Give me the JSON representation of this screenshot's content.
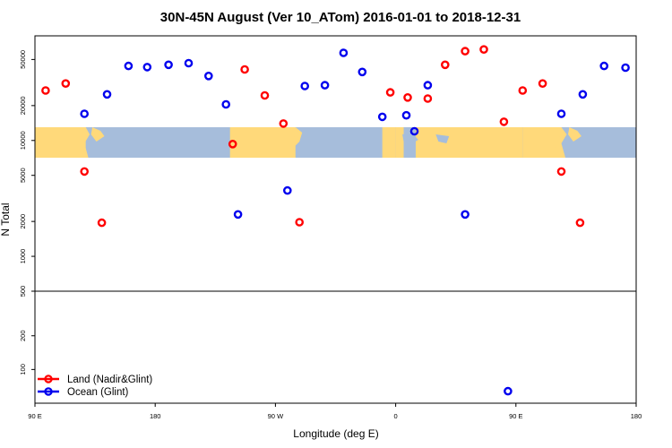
{
  "chart_data": {
    "type": "scatter",
    "title": "30N-45N August (Ver 10_ATom)   2016-01-01 to 2018-12-31",
    "xlabel": "Longitude (deg E)",
    "ylabel": "N Total",
    "x_ticks": [
      {
        "value": 90,
        "label": "90 E"
      },
      {
        "value": 180,
        "label": "180"
      },
      {
        "value": 270,
        "label": "90 W"
      },
      {
        "value": 360,
        "label": "0"
      },
      {
        "value": 450,
        "label": "90 E"
      },
      {
        "value": 540,
        "label": "180"
      }
    ],
    "xlim": [
      90,
      540
    ],
    "y_scale": "log",
    "upper_panel": {
      "ylim": [
        500,
        80000
      ],
      "y_ticks": [
        {
          "value": 500,
          "label": "500"
        },
        {
          "value": 1000,
          "label": "1000"
        },
        {
          "value": 2000,
          "label": "2000"
        },
        {
          "value": 5000,
          "label": "5000"
        },
        {
          "value": 10000,
          "label": "10000"
        },
        {
          "value": 20000,
          "label": "20000"
        },
        {
          "value": 50000,
          "label": "50000"
        }
      ]
    },
    "lower_panel": {
      "ylim": [
        50,
        500
      ],
      "y_ticks": [
        {
          "value": 100,
          "label": "100"
        },
        {
          "value": 200,
          "label": "200"
        },
        {
          "value": 500,
          "label": "500"
        }
      ]
    },
    "map_band": {
      "lat_range": "30N-45N",
      "land_color": "#FFD97A",
      "ocean_color": "#A6BDDB"
    },
    "legend_position": "bottom-left",
    "series": [
      {
        "name": "Land (Nadir&Glint)",
        "color": "#FF0000",
        "points": [
          {
            "x": 98,
            "y": 27000
          },
          {
            "x": 113,
            "y": 31000
          },
          {
            "x": 127,
            "y": 5400
          },
          {
            "x": 140,
            "y": 1950
          },
          {
            "x": 238,
            "y": 9300
          },
          {
            "x": 247,
            "y": 41000
          },
          {
            "x": 262,
            "y": 24500
          },
          {
            "x": 276,
            "y": 14000
          },
          {
            "x": 288,
            "y": 1970
          },
          {
            "x": 356,
            "y": 26000
          },
          {
            "x": 369,
            "y": 23500
          },
          {
            "x": 384,
            "y": 23000
          },
          {
            "x": 397,
            "y": 45000
          },
          {
            "x": 412,
            "y": 59000
          },
          {
            "x": 426,
            "y": 61000
          },
          {
            "x": 441,
            "y": 14500
          },
          {
            "x": 455,
            "y": 27000
          },
          {
            "x": 470,
            "y": 31000
          },
          {
            "x": 484,
            "y": 5400
          },
          {
            "x": 498,
            "y": 1950
          }
        ]
      },
      {
        "name": "Ocean (Glint)",
        "color": "#0000EE",
        "points": [
          {
            "x": 127,
            "y": 17000
          },
          {
            "x": 144,
            "y": 25000
          },
          {
            "x": 160,
            "y": 44000
          },
          {
            "x": 174,
            "y": 43000
          },
          {
            "x": 190,
            "y": 45000
          },
          {
            "x": 205,
            "y": 46500
          },
          {
            "x": 220,
            "y": 36000
          },
          {
            "x": 233,
            "y": 20500
          },
          {
            "x": 242,
            "y": 2300
          },
          {
            "x": 279,
            "y": 3700
          },
          {
            "x": 292,
            "y": 29500
          },
          {
            "x": 307,
            "y": 30000
          },
          {
            "x": 321,
            "y": 57000
          },
          {
            "x": 335,
            "y": 39000
          },
          {
            "x": 350,
            "y": 16000
          },
          {
            "x": 368,
            "y": 16500
          },
          {
            "x": 374,
            "y": 12000
          },
          {
            "x": 384,
            "y": 30000
          },
          {
            "x": 412,
            "y": 2300
          },
          {
            "x": 444,
            "y": 64
          },
          {
            "x": 484,
            "y": 17000
          },
          {
            "x": 500,
            "y": 25000
          },
          {
            "x": 516,
            "y": 44000
          },
          {
            "x": 532,
            "y": 42500
          }
        ]
      }
    ]
  }
}
